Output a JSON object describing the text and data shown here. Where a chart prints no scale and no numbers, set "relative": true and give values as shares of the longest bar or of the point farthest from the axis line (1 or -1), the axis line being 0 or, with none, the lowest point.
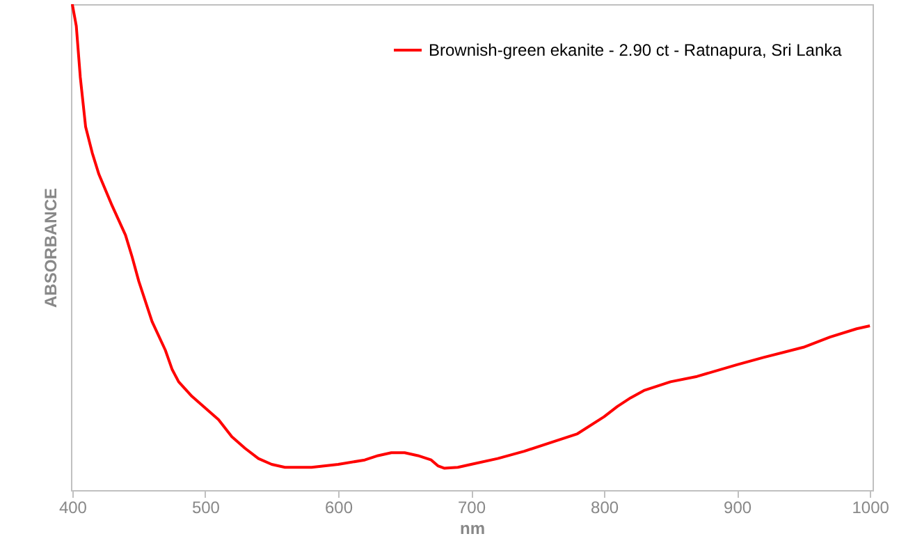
{
  "chart_data": {
    "type": "line",
    "xlabel": "nm",
    "ylabel": "ABSORBANCE",
    "relative": true,
    "legend": "top right",
    "grid": false,
    "line_style": "solid",
    "xlim": [
      399,
      1002
    ],
    "xticks": [
      400,
      500,
      600,
      700,
      800,
      900,
      1000
    ],
    "series": [
      {
        "name": "Brownish-green ekanite - 2.90 ct - Ratnapura, Sri Lanka",
        "color": "#ff0000",
        "x": [
          400,
          403,
          406,
          410,
          415,
          420,
          430,
          440,
          445,
          450,
          460,
          470,
          475,
          480,
          490,
          500,
          510,
          520,
          530,
          540,
          550,
          560,
          580,
          600,
          620,
          630,
          640,
          650,
          660,
          670,
          675,
          680,
          690,
          700,
          720,
          740,
          760,
          780,
          800,
          810,
          820,
          830,
          850,
          870,
          900,
          920,
          950,
          970,
          990,
          1000
        ],
        "values": [
          1.0,
          0.955,
          0.85,
          0.748,
          0.694,
          0.65,
          0.585,
          0.525,
          0.48,
          0.43,
          0.347,
          0.288,
          0.249,
          0.223,
          0.193,
          0.169,
          0.145,
          0.11,
          0.086,
          0.065,
          0.053,
          0.047,
          0.047,
          0.053,
          0.062,
          0.071,
          0.077,
          0.077,
          0.071,
          0.062,
          0.05,
          0.045,
          0.047,
          0.053,
          0.065,
          0.08,
          0.098,
          0.116,
          0.151,
          0.172,
          0.19,
          0.205,
          0.223,
          0.234,
          0.258,
          0.273,
          0.294,
          0.315,
          0.332,
          0.338
        ]
      }
    ]
  }
}
